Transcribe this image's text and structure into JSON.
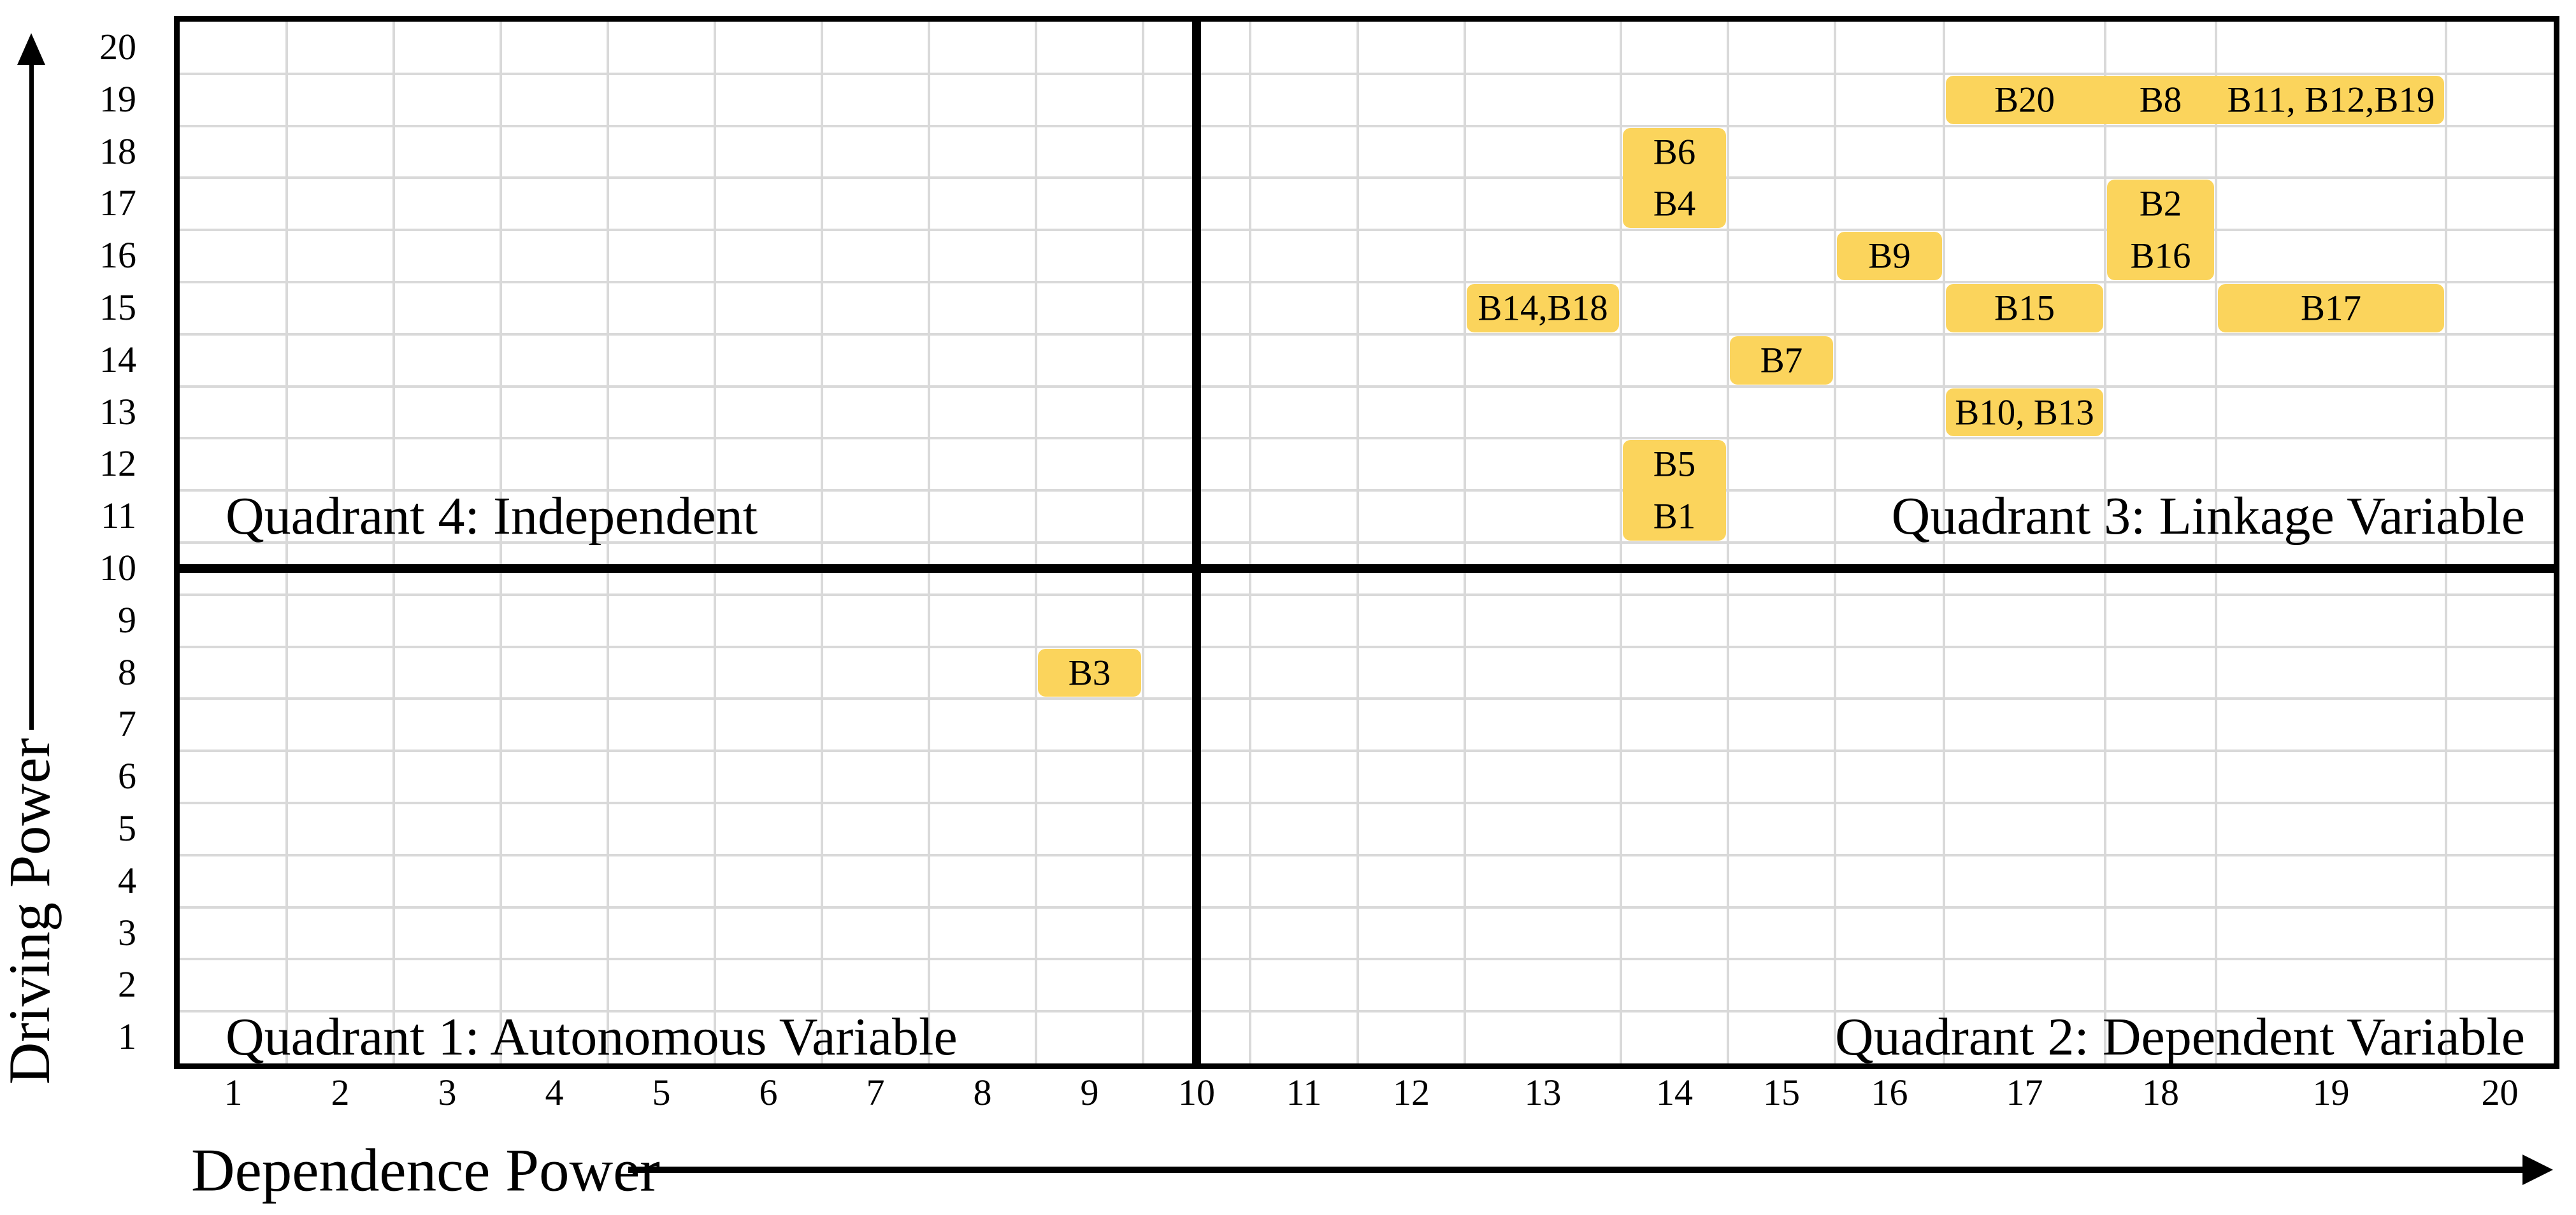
{
  "chart_data": {
    "type": "scatter",
    "variant": "micmac-quadrant-grid",
    "title": "",
    "xlabel": "Dependence Power",
    "ylabel": "Driving Power",
    "xlim": [
      0.5,
      20.5
    ],
    "ylim": [
      0.5,
      20.5
    ],
    "grid": true,
    "x_ticks": [
      "1",
      "2",
      "3",
      "4",
      "5",
      "6",
      "7",
      "8",
      "9",
      "10",
      "11",
      "12",
      "13",
      "14",
      "15",
      "16",
      "17",
      "18",
      "19",
      "20"
    ],
    "y_ticks": [
      "1",
      "2",
      "3",
      "4",
      "5",
      "6",
      "7",
      "8",
      "9",
      "10",
      "11",
      "12",
      "13",
      "14",
      "15",
      "16",
      "17",
      "18",
      "19",
      "20"
    ],
    "gridline_color": "#d9d9d9",
    "axis_color": "#000000",
    "highlight_color": "#FBD45C",
    "dividers": {
      "x": 10,
      "y": 10
    },
    "quadrants": [
      {
        "label": "Quadrant 1: Autonomous Variable",
        "position": "bottom-left"
      },
      {
        "label": "Quadrant 2: Dependent Variable",
        "position": "bottom-right"
      },
      {
        "label": "Quadrant 3: Linkage Variable",
        "position": "top-right"
      },
      {
        "label": "Quadrant 4: Independent",
        "position": "top-left"
      }
    ],
    "points": [
      {
        "label": "B1",
        "x": 14,
        "y": 11
      },
      {
        "label": "B2",
        "x": 18,
        "y": 17
      },
      {
        "label": "B3",
        "x": 9,
        "y": 8
      },
      {
        "label": "B4",
        "x": 14,
        "y": 17
      },
      {
        "label": "B5",
        "x": 14,
        "y": 12
      },
      {
        "label": "B6",
        "x": 14,
        "y": 18
      },
      {
        "label": "B7",
        "x": 15,
        "y": 14
      },
      {
        "label": "B8",
        "x": 18,
        "y": 19
      },
      {
        "label": "B9",
        "x": 16,
        "y": 16
      },
      {
        "label": "B10",
        "x": 17,
        "y": 13
      },
      {
        "label": "B11",
        "x": 19,
        "y": 19
      },
      {
        "label": "B12",
        "x": 19,
        "y": 19
      },
      {
        "label": "B13",
        "x": 17,
        "y": 13
      },
      {
        "label": "B14",
        "x": 13,
        "y": 15
      },
      {
        "label": "B15",
        "x": 17,
        "y": 15
      },
      {
        "label": "B16",
        "x": 18,
        "y": 16
      },
      {
        "label": "B17",
        "x": 19,
        "y": 15
      },
      {
        "label": "B18",
        "x": 13,
        "y": 15
      },
      {
        "label": "B19",
        "x": 19,
        "y": 19
      },
      {
        "label": "B20",
        "x": 17,
        "y": 19
      }
    ],
    "highlight_boxes": [
      {
        "col_start": 17,
        "col_end": 19,
        "row_start": 19,
        "row_end": 19,
        "labels": [
          {
            "text": "B20",
            "col": 17
          },
          {
            "text": "B8",
            "col": 18
          },
          {
            "text": "B11, B12,B19",
            "col": 19
          }
        ]
      },
      {
        "col_start": 14,
        "col_end": 14,
        "row_start": 17,
        "row_end": 18,
        "labels": [
          {
            "text": "B6",
            "row": 18
          },
          {
            "text": "B4",
            "row": 17
          }
        ]
      },
      {
        "col_start": 16,
        "col_end": 16,
        "row_start": 16,
        "row_end": 16,
        "labels": [
          {
            "text": "B9"
          }
        ]
      },
      {
        "col_start": 18,
        "col_end": 18,
        "row_start": 16,
        "row_end": 17,
        "labels": [
          {
            "text": "B2",
            "row": 17
          },
          {
            "text": "B16",
            "row": 16
          }
        ]
      },
      {
        "col_start": 13,
        "col_end": 13,
        "row_start": 15,
        "row_end": 15,
        "labels": [
          {
            "text": "B14,B18"
          }
        ]
      },
      {
        "col_start": 17,
        "col_end": 17,
        "row_start": 15,
        "row_end": 15,
        "labels": [
          {
            "text": "B15"
          }
        ]
      },
      {
        "col_start": 19,
        "col_end": 19,
        "row_start": 15,
        "row_end": 15,
        "labels": [
          {
            "text": "B17"
          }
        ]
      },
      {
        "col_start": 15,
        "col_end": 15,
        "row_start": 14,
        "row_end": 14,
        "labels": [
          {
            "text": "B7"
          }
        ]
      },
      {
        "col_start": 17,
        "col_end": 17,
        "row_start": 13,
        "row_end": 13,
        "labels": [
          {
            "text": "B10, B13"
          }
        ]
      },
      {
        "col_start": 14,
        "col_end": 14,
        "row_start": 11,
        "row_end": 12,
        "labels": [
          {
            "text": "B5",
            "row": 12
          },
          {
            "text": "B1",
            "row": 11
          }
        ]
      },
      {
        "col_start": 9,
        "col_end": 9,
        "row_start": 8,
        "row_end": 8,
        "labels": [
          {
            "text": "B3"
          }
        ]
      }
    ]
  }
}
